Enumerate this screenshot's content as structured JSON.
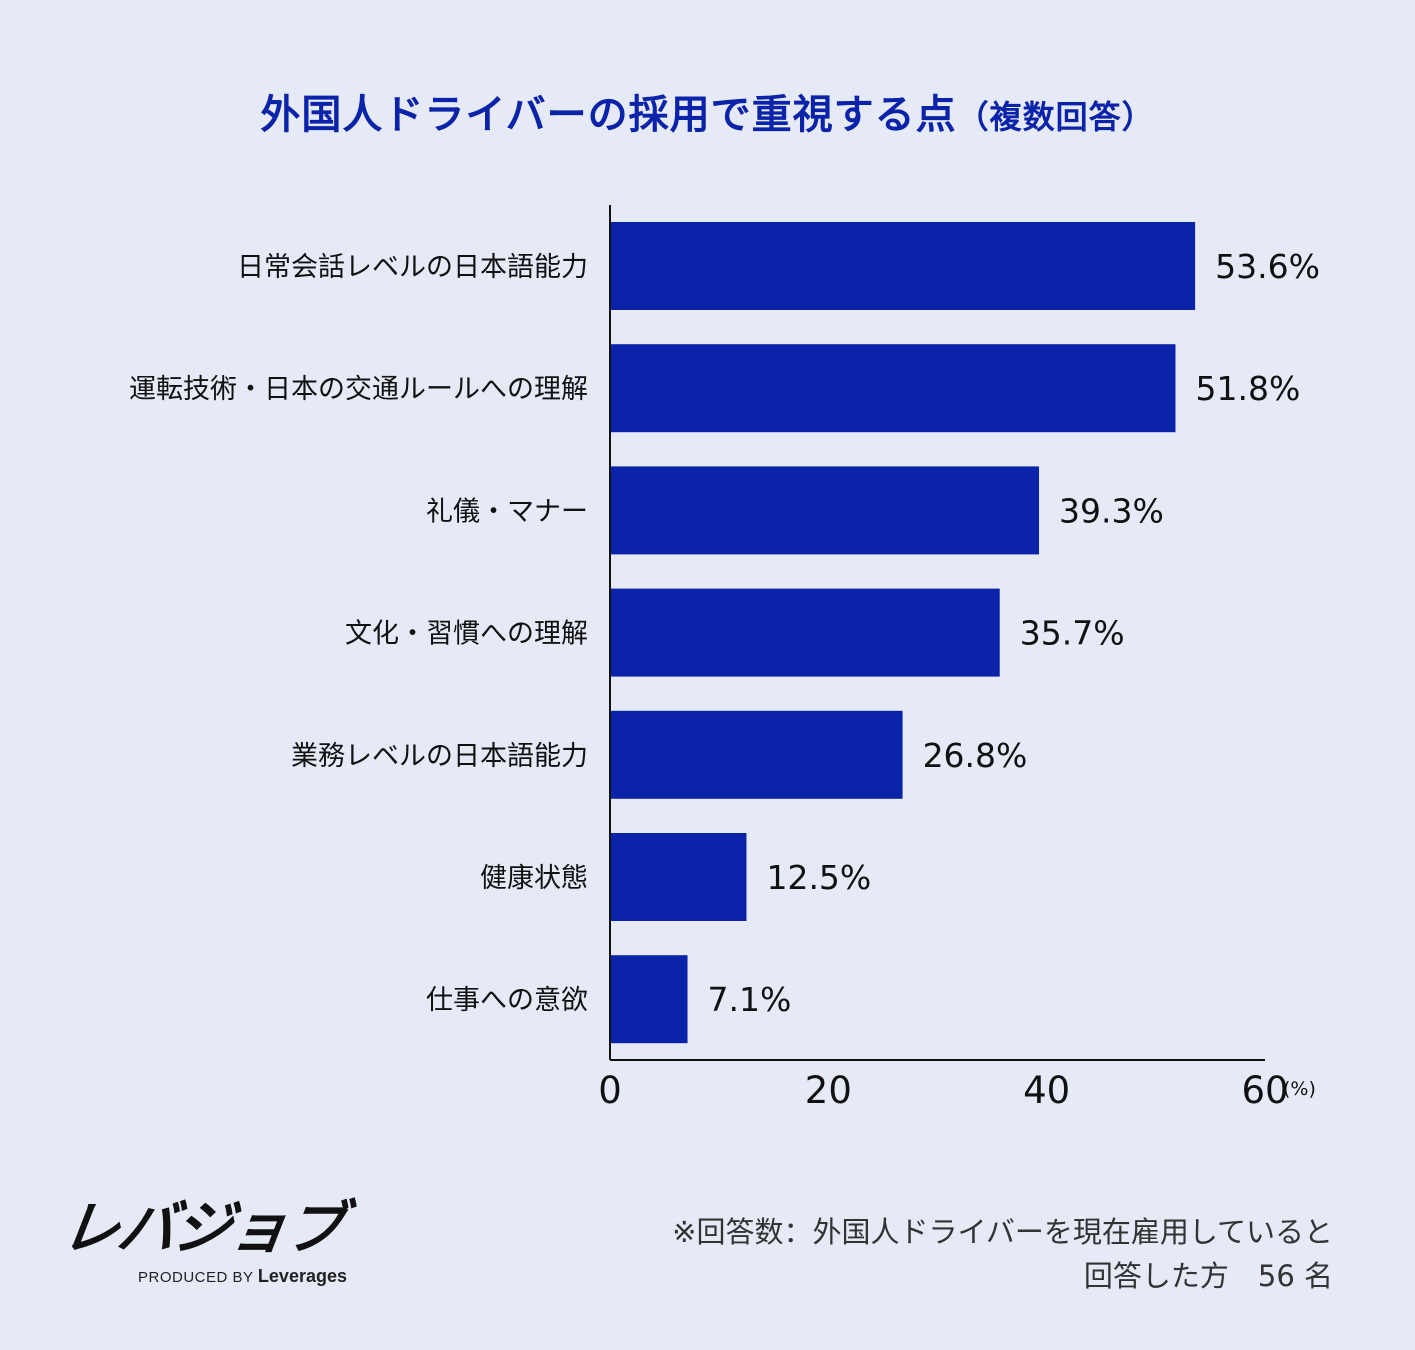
{
  "title": "外国人ドライバーの採用で重視する点",
  "title_suffix": "（複数回答）",
  "chart_data": {
    "type": "bar",
    "orientation": "horizontal",
    "title": "外国人ドライバーの採用で重視する点（複数回答）",
    "categories": [
      "日常会話レベルの日本語能力",
      "運転技術・日本の交通ルールへの理解",
      "礼儀・マナー",
      "文化・習慣への理解",
      "業務レベルの日本語能力",
      "健康状態",
      "仕事への意欲"
    ],
    "values": [
      53.6,
      51.8,
      39.3,
      35.7,
      26.8,
      12.5,
      7.1
    ],
    "value_labels": [
      "53.6%",
      "51.8%",
      "39.3%",
      "35.7%",
      "26.8%",
      "12.5%",
      "7.1%"
    ],
    "xlim": [
      0,
      60
    ],
    "xticks": [
      "0",
      "20",
      "40",
      "60"
    ],
    "x_unit": "(%)",
    "bar_color": "#0a23a8",
    "grid": false
  },
  "logo": {
    "name": "レバジョブ",
    "produced_by": "PRODUCED BY",
    "brand": "Leverages"
  },
  "footnote": {
    "line1": "※回答数：外国人ドライバーを現在雇用していると",
    "line2": "回答した方　56 名"
  }
}
